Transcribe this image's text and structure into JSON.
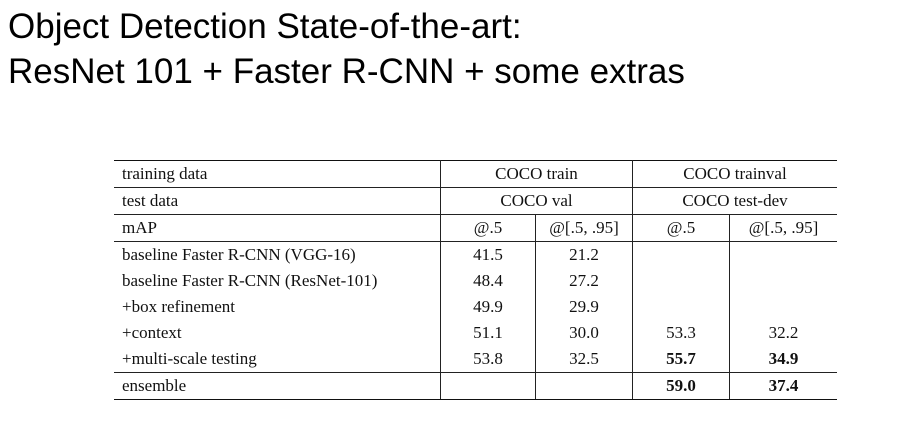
{
  "slide": {
    "title_line1": "Object Detection State-of-the-art:",
    "title_line2": "ResNet 101 + Faster R-CNN + some extras"
  },
  "table": {
    "header": {
      "training_data_label": "training data",
      "training_data_a": "COCO train",
      "training_data_b": "COCO trainval",
      "test_data_label": "test data",
      "test_data_a": "COCO val",
      "test_data_b": "COCO test-dev",
      "metric_label": "mAP",
      "metric_a1": "@.5",
      "metric_a2": "@[.5, .95]",
      "metric_b1": "@.5",
      "metric_b2": "@[.5, .95]"
    },
    "rows": [
      {
        "method": "baseline Faster R-CNN (VGG-16)",
        "val_ap50": "41.5",
        "val_ap": "21.2",
        "test_ap50": "",
        "test_ap": ""
      },
      {
        "method": "baseline Faster R-CNN (ResNet-101)",
        "val_ap50": "48.4",
        "val_ap": "27.2",
        "test_ap50": "",
        "test_ap": ""
      },
      {
        "method": "+box refinement",
        "val_ap50": "49.9",
        "val_ap": "29.9",
        "test_ap50": "",
        "test_ap": ""
      },
      {
        "method": "+context",
        "val_ap50": "51.1",
        "val_ap": "30.0",
        "test_ap50": "53.3",
        "test_ap": "32.2"
      },
      {
        "method": "+multi-scale testing",
        "val_ap50": "53.8",
        "val_ap": "32.5",
        "test_ap50": "55.7",
        "test_ap": "34.9"
      }
    ],
    "ensemble": {
      "method": "ensemble",
      "val_ap50": "",
      "val_ap": "",
      "test_ap50": "59.0",
      "test_ap": "37.4"
    }
  }
}
